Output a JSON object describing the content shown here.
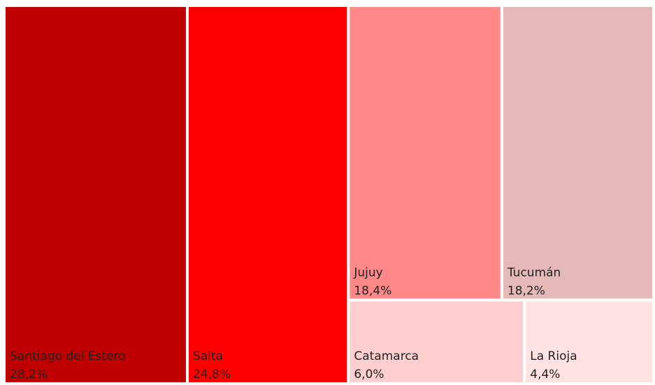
{
  "chart_data": {
    "type": "treemap",
    "categories": [
      "Santiago del Estero",
      "Salta",
      "Jujuy",
      "Tucumán",
      "Catamarca",
      "La Rioja"
    ],
    "values": [
      28.2,
      24.8,
      18.4,
      18.2,
      6.0,
      4.4
    ],
    "value_labels": [
      "28,2%",
      "24,8%",
      "18,4%",
      "18,2%",
      "6,0%",
      "4,4%"
    ],
    "colors": [
      "#c00000",
      "#ff0000",
      "#ff8989",
      "#e5b9b8",
      "#ffcfcf",
      "#ffe2e2"
    ]
  }
}
